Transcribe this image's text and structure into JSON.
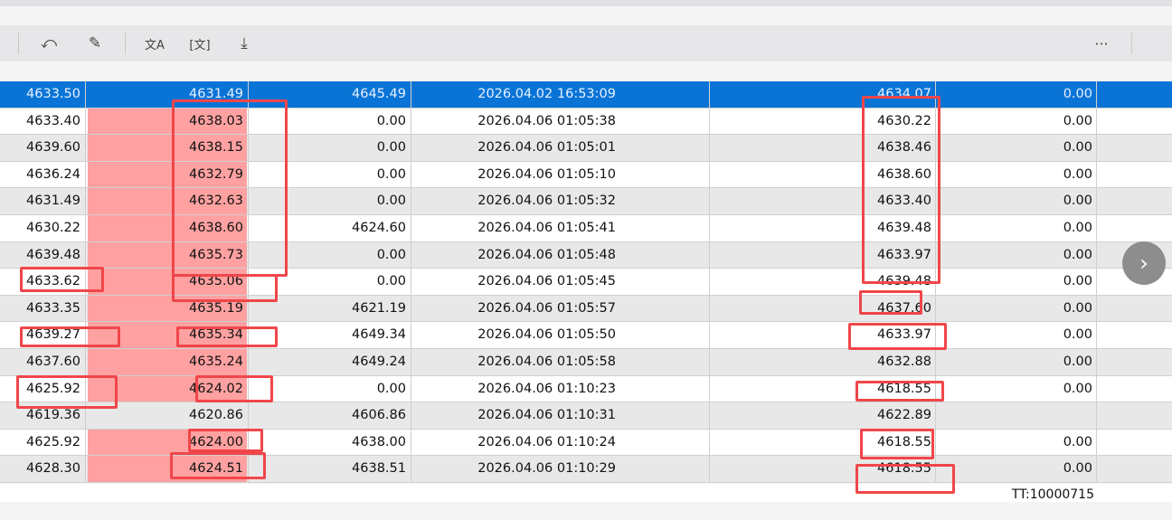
{
  "toolbar": {
    "icons": [
      "rotate-frame-icon",
      "edit-icon",
      "translate-image-icon",
      "extract-text-icon",
      "download-icon"
    ],
    "more_label": "···"
  },
  "rows": [
    [
      "4633.50",
      "4631.49",
      "4645.49",
      "2026.04.02 16:53:09",
      "4634.07",
      "0.00"
    ],
    [
      "4633.40",
      "4638.03",
      "0.00",
      "2026.04.06 01:05:38",
      "4630.22",
      "0.00"
    ],
    [
      "4639.60",
      "4638.15",
      "0.00",
      "2026.04.06 01:05:01",
      "4638.46",
      "0.00"
    ],
    [
      "4636.24",
      "4632.79",
      "0.00",
      "2026.04.06 01:05:10",
      "4638.60",
      "0.00"
    ],
    [
      "4631.49",
      "4632.63",
      "0.00",
      "2026.04.06 01:05:32",
      "4633.40",
      "0.00"
    ],
    [
      "4630.22",
      "4638.60",
      "4624.60",
      "2026.04.06 01:05:41",
      "4639.48",
      "0.00"
    ],
    [
      "4639.48",
      "4635.73",
      "0.00",
      "2026.04.06 01:05:48",
      "4633.97",
      "0.00"
    ],
    [
      "4633.62",
      "4635.06",
      "0.00",
      "2026.04.06 01:05:45",
      "4639.48",
      "0.00"
    ],
    [
      "4633.35",
      "4635.19",
      "4621.19",
      "2026.04.06 01:05:57",
      "4637.60",
      "0.00"
    ],
    [
      "4639.27",
      "4635.34",
      "4649.34",
      "2026.04.06 01:05:50",
      "4633.97",
      "0.00"
    ],
    [
      "4637.60",
      "4635.24",
      "4649.24",
      "2026.04.06 01:05:58",
      "4632.88",
      "0.00"
    ],
    [
      "4625.92",
      "4624.02",
      "0.00",
      "2026.04.06 01:10:23",
      "4618.55",
      "0.00"
    ],
    [
      "4619.36",
      "4620.86",
      "4606.86",
      "2026.04.06 01:10:31",
      "4622.89",
      ""
    ],
    [
      "4625.92",
      "4624.00",
      "4638.00",
      "2026.04.06 01:10:24",
      "4618.55",
      "0.00"
    ],
    [
      "4628.30",
      "4624.51",
      "4638.51",
      "2026.04.06 01:10:29",
      "4618.55",
      "0.00"
    ]
  ],
  "highlight_color": "#ffa1a1",
  "selected_color": "#0a74d6",
  "annotation_color": "#f0464a",
  "footer": {
    "tt": "TT:10000715"
  },
  "nav": {
    "icon": "chevron-right-icon",
    "label": "›"
  }
}
